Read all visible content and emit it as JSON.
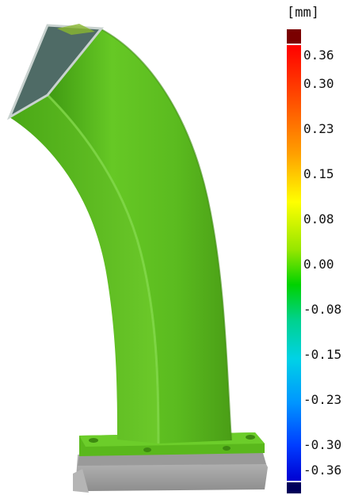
{
  "legend": {
    "unit": "[mm]",
    "ticks": [
      "0.36",
      "0.30",
      "0.23",
      "0.15",
      "0.08",
      "0.00",
      "-0.08",
      "-0.15",
      "-0.23",
      "-0.30",
      "-0.36"
    ],
    "scale_colors": [
      "#7a0000",
      "#ff0000",
      "#ff6a00",
      "#ffb400",
      "#ffff00",
      "#a8e600",
      "#00d200",
      "#00d29a",
      "#00c8e6",
      "#00a0ff",
      "#0050ff",
      "#0000c8",
      "#00005a"
    ]
  },
  "model": {
    "surface_color": "#5cc21e",
    "opening_color": "#4f6b66",
    "base_color": "#a8a8a8"
  }
}
